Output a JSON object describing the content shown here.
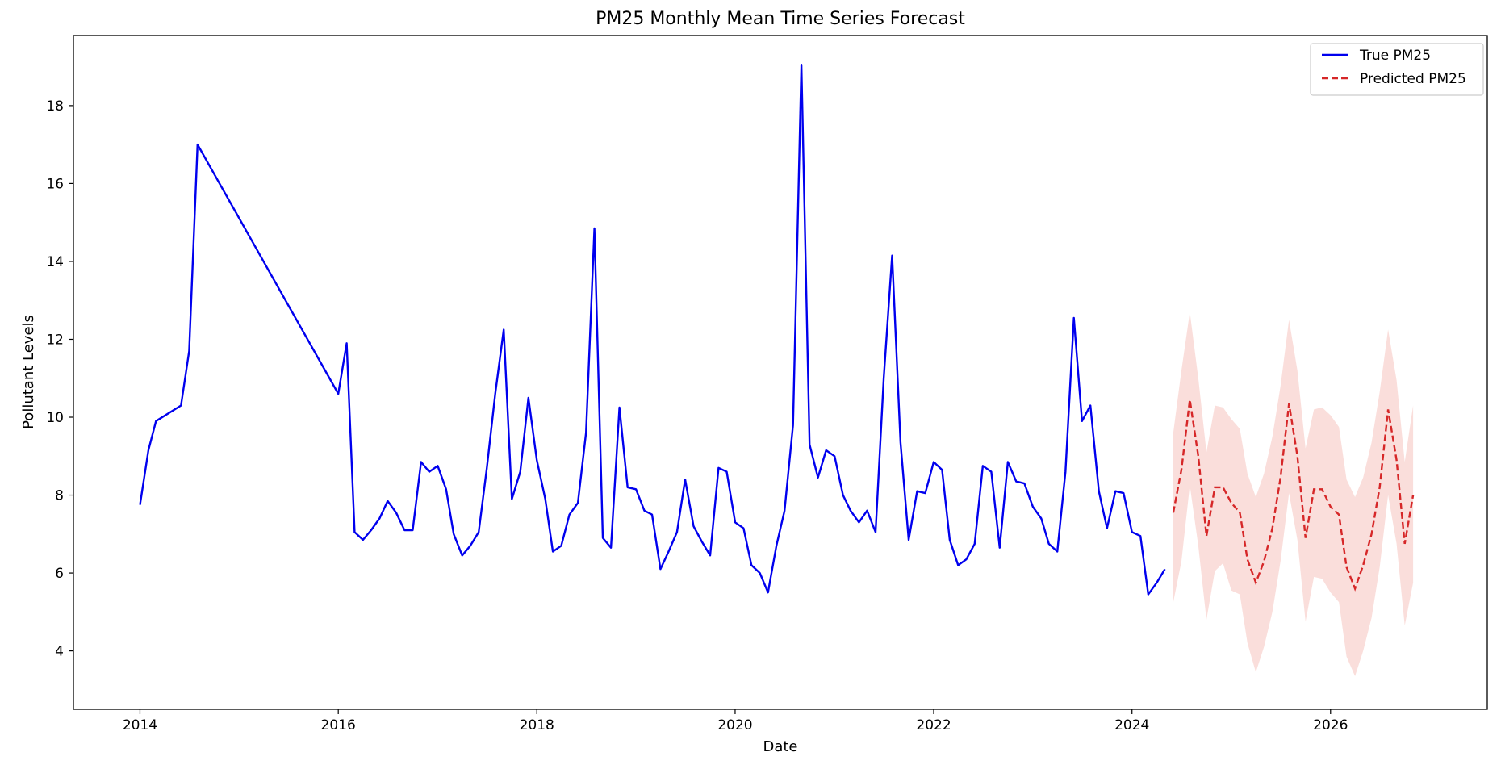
{
  "chart_data": {
    "type": "line",
    "title": "PM25 Monthly Mean Time Series Forecast",
    "xlabel": "Date",
    "ylabel": "Pollutant Levels",
    "xlim": [
      "2013-05-01",
      "2027-08-01"
    ],
    "ylim": [
      2.5,
      19.8
    ],
    "xticks": [
      "2014",
      "2016",
      "2018",
      "2020",
      "2022",
      "2024",
      "2026"
    ],
    "yticks": [
      4,
      6,
      8,
      10,
      12,
      14,
      16,
      18
    ],
    "grid": false,
    "legend": {
      "position": "top-right",
      "entries": [
        "True PM25",
        "Predicted PM25"
      ]
    },
    "colors": {
      "true": "#0000ee",
      "predicted": "#d62728",
      "band": "#f4b6b0"
    },
    "series": [
      {
        "name": "True PM25",
        "style": "solid",
        "points": [
          [
            "2014-01-01",
            7.75
          ],
          [
            "2014-02-01",
            9.15
          ],
          [
            "2014-03-01",
            9.9
          ],
          [
            "2014-06-01",
            10.3
          ],
          [
            "2014-07-01",
            11.7
          ],
          [
            "2014-08-01",
            17.0
          ],
          [
            "2016-01-01",
            10.6
          ],
          [
            "2016-02-01",
            11.9
          ],
          [
            "2016-03-01",
            7.05
          ],
          [
            "2016-04-01",
            6.85
          ],
          [
            "2016-05-01",
            7.1
          ],
          [
            "2016-06-01",
            7.4
          ],
          [
            "2016-07-01",
            7.85
          ],
          [
            "2016-08-01",
            7.55
          ],
          [
            "2016-09-01",
            7.1
          ],
          [
            "2016-10-01",
            7.1
          ],
          [
            "2016-11-01",
            8.85
          ],
          [
            "2016-12-01",
            8.6
          ],
          [
            "2017-01-01",
            8.75
          ],
          [
            "2017-02-01",
            8.15
          ],
          [
            "2017-03-01",
            7.0
          ],
          [
            "2017-04-01",
            6.45
          ],
          [
            "2017-05-01",
            6.7
          ],
          [
            "2017-06-01",
            7.05
          ],
          [
            "2017-07-01",
            8.7
          ],
          [
            "2017-08-01",
            10.6
          ],
          [
            "2017-09-01",
            12.25
          ],
          [
            "2017-10-01",
            7.9
          ],
          [
            "2017-11-01",
            8.6
          ],
          [
            "2017-12-01",
            10.5
          ],
          [
            "2018-01-01",
            8.9
          ],
          [
            "2018-02-01",
            7.9
          ],
          [
            "2018-03-01",
            6.55
          ],
          [
            "2018-04-01",
            6.7
          ],
          [
            "2018-05-01",
            7.5
          ],
          [
            "2018-06-01",
            7.8
          ],
          [
            "2018-07-01",
            9.6
          ],
          [
            "2018-08-01",
            14.85
          ],
          [
            "2018-09-01",
            6.9
          ],
          [
            "2018-10-01",
            6.65
          ],
          [
            "2018-11-01",
            10.25
          ],
          [
            "2018-12-01",
            8.2
          ],
          [
            "2019-01-01",
            8.15
          ],
          [
            "2019-02-01",
            7.6
          ],
          [
            "2019-03-01",
            7.5
          ],
          [
            "2019-04-01",
            6.1
          ],
          [
            "2019-05-01",
            6.55
          ],
          [
            "2019-06-01",
            7.05
          ],
          [
            "2019-07-01",
            8.4
          ],
          [
            "2019-08-01",
            7.2
          ],
          [
            "2019-09-01",
            6.8
          ],
          [
            "2019-10-01",
            6.45
          ],
          [
            "2019-11-01",
            8.7
          ],
          [
            "2019-12-01",
            8.6
          ],
          [
            "2020-01-01",
            7.3
          ],
          [
            "2020-02-01",
            7.15
          ],
          [
            "2020-03-01",
            6.2
          ],
          [
            "2020-04-01",
            6.0
          ],
          [
            "2020-05-01",
            5.5
          ],
          [
            "2020-06-01",
            6.7
          ],
          [
            "2020-07-01",
            7.6
          ],
          [
            "2020-08-01",
            9.8
          ],
          [
            "2020-09-01",
            19.05
          ],
          [
            "2020-10-01",
            9.3
          ],
          [
            "2020-11-01",
            8.45
          ],
          [
            "2020-12-01",
            9.15
          ],
          [
            "2021-01-01",
            9.0
          ],
          [
            "2021-02-01",
            8.0
          ],
          [
            "2021-03-01",
            7.6
          ],
          [
            "2021-04-01",
            7.3
          ],
          [
            "2021-05-01",
            7.6
          ],
          [
            "2021-06-01",
            7.05
          ],
          [
            "2021-07-01",
            11.0
          ],
          [
            "2021-08-01",
            14.15
          ],
          [
            "2021-09-01",
            9.35
          ],
          [
            "2021-10-01",
            6.85
          ],
          [
            "2021-11-01",
            8.1
          ],
          [
            "2021-12-01",
            8.05
          ],
          [
            "2022-01-01",
            8.85
          ],
          [
            "2022-02-01",
            8.65
          ],
          [
            "2022-03-01",
            6.85
          ],
          [
            "2022-04-01",
            6.2
          ],
          [
            "2022-05-01",
            6.35
          ],
          [
            "2022-06-01",
            6.75
          ],
          [
            "2022-07-01",
            8.75
          ],
          [
            "2022-08-01",
            8.6
          ],
          [
            "2022-09-01",
            6.65
          ],
          [
            "2022-10-01",
            8.85
          ],
          [
            "2022-11-01",
            8.35
          ],
          [
            "2022-12-01",
            8.3
          ],
          [
            "2023-01-01",
            7.7
          ],
          [
            "2023-02-01",
            7.4
          ],
          [
            "2023-03-01",
            6.75
          ],
          [
            "2023-04-01",
            6.55
          ],
          [
            "2023-05-01",
            8.6
          ],
          [
            "2023-06-01",
            12.55
          ],
          [
            "2023-07-01",
            9.9
          ],
          [
            "2023-08-01",
            10.3
          ],
          [
            "2023-09-01",
            8.1
          ],
          [
            "2023-10-01",
            7.15
          ],
          [
            "2023-11-01",
            8.1
          ],
          [
            "2023-12-01",
            8.05
          ],
          [
            "2024-01-01",
            7.05
          ],
          [
            "2024-02-01",
            6.95
          ],
          [
            "2024-03-01",
            5.45
          ],
          [
            "2024-04-01",
            5.75
          ],
          [
            "2024-05-01",
            6.1
          ]
        ]
      },
      {
        "name": "Predicted PM25",
        "style": "dashed",
        "points": [
          [
            "2024-06-01",
            7.55,
            5.25,
            9.6
          ],
          [
            "2024-07-01",
            8.65,
            6.3,
            11.2
          ],
          [
            "2024-08-01",
            10.45,
            8.25,
            12.7
          ],
          [
            "2024-09-01",
            9.0,
            6.7,
            11.0
          ],
          [
            "2024-10-01",
            6.95,
            4.8,
            9.1
          ],
          [
            "2024-11-01",
            8.2,
            6.05,
            10.3
          ],
          [
            "2024-12-01",
            8.2,
            6.25,
            10.25
          ],
          [
            "2025-01-01",
            7.8,
            5.55,
            9.95
          ],
          [
            "2025-02-01",
            7.55,
            5.45,
            9.7
          ],
          [
            "2025-03-01",
            6.35,
            4.2,
            8.55
          ],
          [
            "2025-04-01",
            5.75,
            3.45,
            7.95
          ],
          [
            "2025-05-01",
            6.3,
            4.1,
            8.55
          ],
          [
            "2025-06-01",
            7.15,
            5.0,
            9.5
          ],
          [
            "2025-07-01",
            8.45,
            6.3,
            10.8
          ],
          [
            "2025-08-01",
            10.35,
            8.05,
            12.5
          ],
          [
            "2025-09-01",
            9.0,
            6.85,
            11.2
          ],
          [
            "2025-10-01",
            6.9,
            4.75,
            9.2
          ],
          [
            "2025-11-01",
            8.15,
            5.9,
            10.2
          ],
          [
            "2025-12-01",
            8.15,
            5.85,
            10.25
          ],
          [
            "2026-01-01",
            7.7,
            5.5,
            10.05
          ],
          [
            "2026-02-01",
            7.5,
            5.25,
            9.75
          ],
          [
            "2026-03-01",
            6.15,
            3.85,
            8.4
          ],
          [
            "2026-04-01",
            5.6,
            3.35,
            7.95
          ],
          [
            "2026-05-01",
            6.2,
            4.0,
            8.45
          ],
          [
            "2026-06-01",
            7.0,
            4.85,
            9.35
          ],
          [
            "2026-07-01",
            8.2,
            6.15,
            10.65
          ],
          [
            "2026-08-01",
            10.2,
            8.0,
            12.25
          ],
          [
            "2026-09-01",
            8.9,
            6.75,
            10.95
          ],
          [
            "2026-10-01",
            6.75,
            4.65,
            8.85
          ],
          [
            "2026-11-01",
            8.0,
            5.75,
            10.3
          ]
        ]
      }
    ]
  }
}
